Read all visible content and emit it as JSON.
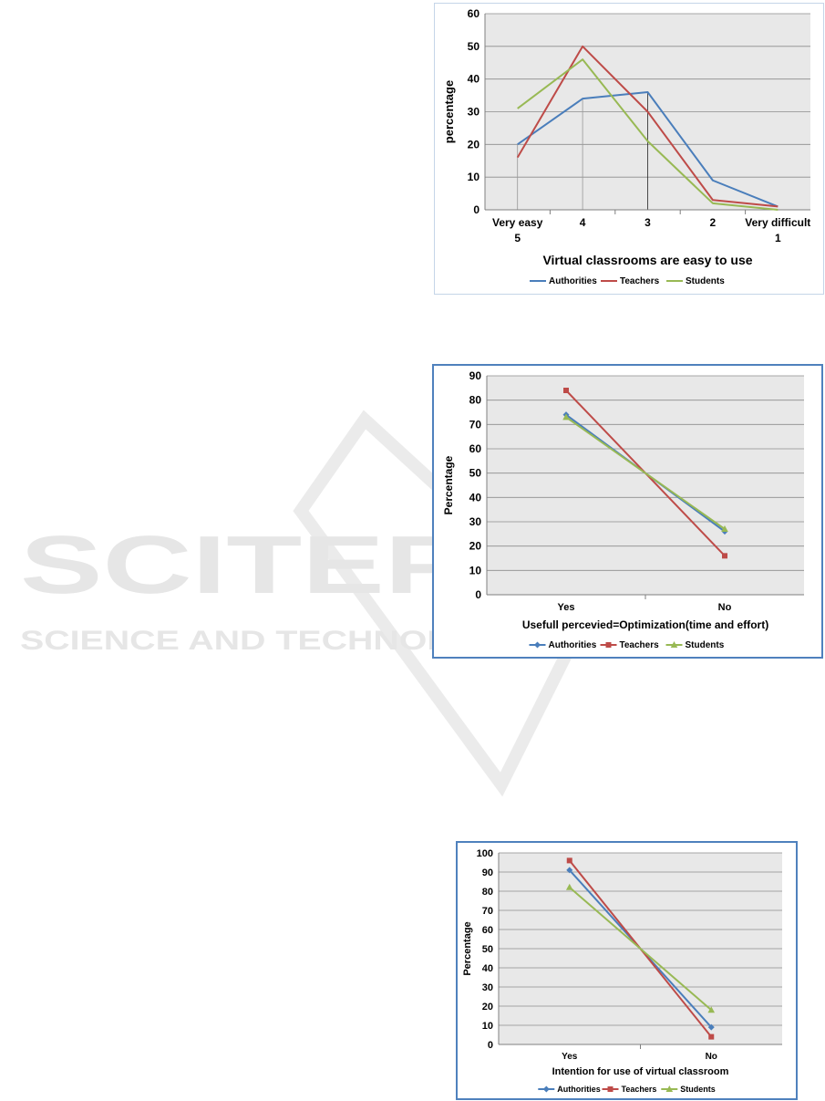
{
  "watermark": {
    "line1": "SCITEPRESS",
    "line2": "SCIENCE AND TECHNOLOGY PUBLICATIONS"
  },
  "colors": {
    "authorities": "#4a7ebb",
    "teachers": "#be4b48",
    "students": "#98b954",
    "plot_bg": "#e8e8e8",
    "grid": "#8c8c8c"
  },
  "chart_data": [
    {
      "type": "line",
      "title": "",
      "categories": [
        "Very easy 5",
        "4",
        "3",
        "2",
        "Very difficult 1"
      ],
      "xlabel": "Virtual classrooms are easy to use",
      "ylabel": "percentage",
      "ylim": [
        0,
        60
      ],
      "yticks": [
        0,
        10,
        20,
        30,
        40,
        50,
        60
      ],
      "grid": true,
      "legend_position": "bottom",
      "markers": false,
      "series": [
        {
          "name": "Authorities",
          "values": [
            20,
            34,
            36,
            9,
            1
          ]
        },
        {
          "name": "Teachers",
          "values": [
            16,
            50,
            30,
            3,
            1
          ]
        },
        {
          "name": "Students",
          "values": [
            31,
            46,
            21,
            2,
            0
          ]
        }
      ]
    },
    {
      "type": "line",
      "title": "",
      "categories": [
        "Yes",
        "No"
      ],
      "xlabel": "Usefull percevied=Optimization(time and effort)",
      "ylabel": "Percentage",
      "ylim": [
        0,
        90
      ],
      "yticks": [
        0,
        10,
        20,
        30,
        40,
        50,
        60,
        70,
        80,
        90
      ],
      "grid": true,
      "legend_position": "bottom",
      "markers": true,
      "series": [
        {
          "name": "Authorities",
          "values": [
            74,
            26
          ]
        },
        {
          "name": "Teachers",
          "values": [
            84,
            16
          ]
        },
        {
          "name": "Students",
          "values": [
            73,
            27
          ]
        }
      ]
    },
    {
      "type": "line",
      "title": "",
      "categories": [
        "Yes",
        "No"
      ],
      "xlabel": "Intention for use of virtual classroom",
      "ylabel": "Percentage",
      "ylim": [
        0,
        100
      ],
      "yticks": [
        0,
        10,
        20,
        30,
        40,
        50,
        60,
        70,
        80,
        90,
        100
      ],
      "grid": true,
      "legend_position": "bottom",
      "markers": true,
      "series": [
        {
          "name": "Authorities",
          "values": [
            91,
            9
          ]
        },
        {
          "name": "Teachers",
          "values": [
            96,
            4
          ]
        },
        {
          "name": "Students",
          "values": [
            82,
            18
          ]
        }
      ]
    }
  ]
}
